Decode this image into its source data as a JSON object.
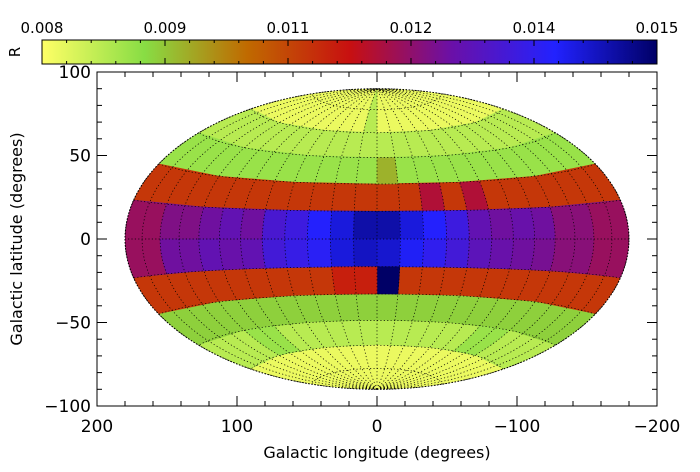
{
  "chart_data": {
    "type": "heatmap",
    "projection": "aitoff-hammer",
    "xlabel": "Galactic longitude (degrees)",
    "ylabel": "Galactic latitude (degrees)",
    "xlim": [
      200,
      -200
    ],
    "ylim": [
      -100,
      100
    ],
    "x_ticks": [
      "200",
      "100",
      "0",
      "−100",
      "−200"
    ],
    "y_ticks": [
      "100",
      "50",
      "0",
      "−50",
      "−100"
    ],
    "grid": "dotted",
    "colorbar": {
      "label": "R",
      "range": [
        0.008,
        0.015
      ],
      "tick_labels": [
        "0.008",
        "0.009",
        "0.011",
        "0.012",
        "0.014",
        "0.015"
      ],
      "colors": [
        "#ffff66",
        "#88dd44",
        "#c06a00",
        "#c81010",
        "#6a10a8",
        "#2222ff",
        "#000066"
      ]
    },
    "bands": [
      {
        "lat": [
          60,
          90
        ],
        "value": 0.0082
      },
      {
        "lat": [
          45,
          60
        ],
        "value": 0.0087
      },
      {
        "lat": [
          30,
          45
        ],
        "value": 0.009
      },
      {
        "lat": [
          15,
          30
        ],
        "value": 0.011
      },
      {
        "lat": [
          0,
          15
        ],
        "value": 0.0125
      },
      {
        "lat": [
          -15,
          0
        ],
        "value": 0.0125
      },
      {
        "lat": [
          -30,
          -15
        ],
        "value": 0.011
      },
      {
        "lat": [
          -45,
          -30
        ],
        "value": 0.0093
      },
      {
        "lat": [
          -60,
          -45
        ],
        "value": 0.0087
      },
      {
        "lat": [
          -90,
          -60
        ],
        "value": 0.0082
      }
    ],
    "cells": [
      {
        "lon": [
          0,
          15
        ],
        "lat": [
          60,
          90
        ],
        "value": 0.0087
      },
      {
        "lon": [
          -15,
          0
        ],
        "lat": [
          30,
          45
        ],
        "value": 0.0096
      },
      {
        "lon": [
          90,
          120
        ],
        "lat": [
          -60,
          -45
        ],
        "value": 0.009
      },
      {
        "lon": [
          -120,
          -90
        ],
        "lat": [
          -60,
          -45
        ],
        "value": 0.009
      },
      {
        "lon": [
          -75,
          -60
        ],
        "lat": [
          15,
          30
        ],
        "value": 0.0118
      },
      {
        "lon": [
          -45,
          -30
        ],
        "lat": [
          15,
          30
        ],
        "value": 0.0118
      },
      {
        "lon": [
          150,
          180
        ],
        "lat": [
          0,
          15
        ],
        "value": 0.0121
      },
      {
        "lon": [
          120,
          150
        ],
        "lat": [
          0,
          15
        ],
        "value": 0.0124
      },
      {
        "lon": [
          105,
          120
        ],
        "lat": [
          0,
          15
        ],
        "value": 0.0126
      },
      {
        "lon": [
          90,
          105
        ],
        "lat": [
          0,
          15
        ],
        "value": 0.0128
      },
      {
        "lon": [
          75,
          90
        ],
        "lat": [
          0,
          15
        ],
        "value": 0.0126
      },
      {
        "lon": [
          60,
          75
        ],
        "lat": [
          0,
          15
        ],
        "value": 0.0132
      },
      {
        "lon": [
          45,
          60
        ],
        "lat": [
          0,
          15
        ],
        "value": 0.0134
      },
      {
        "lon": [
          30,
          45
        ],
        "lat": [
          0,
          15
        ],
        "value": 0.0138
      },
      {
        "lon": [
          15,
          30
        ],
        "lat": [
          0,
          15
        ],
        "value": 0.0141
      },
      {
        "lon": [
          0,
          15
        ],
        "lat": [
          0,
          15
        ],
        "value": 0.0145
      },
      {
        "lon": [
          -15,
          0
        ],
        "lat": [
          0,
          15
        ],
        "value": 0.0145
      },
      {
        "lon": [
          -30,
          -15
        ],
        "lat": [
          0,
          15
        ],
        "value": 0.0141
      },
      {
        "lon": [
          -45,
          -30
        ],
        "lat": [
          0,
          15
        ],
        "value": 0.0138
      },
      {
        "lon": [
          -60,
          -45
        ],
        "lat": [
          0,
          15
        ],
        "value": 0.0134
      },
      {
        "lon": [
          -75,
          -60
        ],
        "lat": [
          0,
          15
        ],
        "value": 0.0128
      },
      {
        "lon": [
          -90,
          -75
        ],
        "lat": [
          0,
          15
        ],
        "value": 0.0126
      },
      {
        "lon": [
          -105,
          -90
        ],
        "lat": [
          0,
          15
        ],
        "value": 0.0127
      },
      {
        "lon": [
          -120,
          -105
        ],
        "lat": [
          0,
          15
        ],
        "value": 0.0126
      },
      {
        "lon": [
          -150,
          -120
        ],
        "lat": [
          0,
          15
        ],
        "value": 0.0123
      },
      {
        "lon": [
          -180,
          -150
        ],
        "lat": [
          0,
          15
        ],
        "value": 0.0121
      },
      {
        "lon": [
          150,
          180
        ],
        "lat": [
          -15,
          0
        ],
        "value": 0.0121
      },
      {
        "lon": [
          120,
          150
        ],
        "lat": [
          -15,
          0
        ],
        "value": 0.0126
      },
      {
        "lon": [
          105,
          120
        ],
        "lat": [
          -15,
          0
        ],
        "value": 0.0128
      },
      {
        "lon": [
          90,
          105
        ],
        "lat": [
          -15,
          0
        ],
        "value": 0.0127
      },
      {
        "lon": [
          75,
          90
        ],
        "lat": [
          -15,
          0
        ],
        "value": 0.0128
      },
      {
        "lon": [
          60,
          75
        ],
        "lat": [
          -15,
          0
        ],
        "value": 0.0133
      },
      {
        "lon": [
          45,
          60
        ],
        "lat": [
          -15,
          0
        ],
        "value": 0.0135
      },
      {
        "lon": [
          30,
          45
        ],
        "lat": [
          -15,
          0
        ],
        "value": 0.0137
      },
      {
        "lon": [
          15,
          30
        ],
        "lat": [
          -15,
          0
        ],
        "value": 0.0141
      },
      {
        "lon": [
          0,
          15
        ],
        "lat": [
          -15,
          0
        ],
        "value": 0.0143
      },
      {
        "lon": [
          -15,
          0
        ],
        "lat": [
          -15,
          0
        ],
        "value": 0.0142
      },
      {
        "lon": [
          -30,
          -15
        ],
        "lat": [
          -15,
          0
        ],
        "value": 0.0139
      },
      {
        "lon": [
          -45,
          -30
        ],
        "lat": [
          -15,
          0
        ],
        "value": 0.0136
      },
      {
        "lon": [
          -60,
          -45
        ],
        "lat": [
          -15,
          0
        ],
        "value": 0.0133
      },
      {
        "lon": [
          -75,
          -60
        ],
        "lat": [
          -15,
          0
        ],
        "value": 0.0129
      },
      {
        "lon": [
          -90,
          -75
        ],
        "lat": [
          -15,
          0
        ],
        "value": 0.0127
      },
      {
        "lon": [
          -105,
          -90
        ],
        "lat": [
          -15,
          0
        ],
        "value": 0.0126
      },
      {
        "lon": [
          -120,
          -105
        ],
        "lat": [
          -15,
          0
        ],
        "value": 0.0125
      },
      {
        "lon": [
          -150,
          -120
        ],
        "lat": [
          -15,
          0
        ],
        "value": 0.0123
      },
      {
        "lon": [
          -180,
          -150
        ],
        "lat": [
          -15,
          0
        ],
        "value": 0.0121
      },
      {
        "lon": [
          -15,
          0
        ],
        "lat": [
          -30,
          -15
        ],
        "value": 0.015
      },
      {
        "lon": [
          0,
          15
        ],
        "lat": [
          -30,
          -15
        ],
        "value": 0.0113
      },
      {
        "lon": [
          15,
          30
        ],
        "lat": [
          -30,
          -15
        ],
        "value": 0.0113
      }
    ]
  }
}
